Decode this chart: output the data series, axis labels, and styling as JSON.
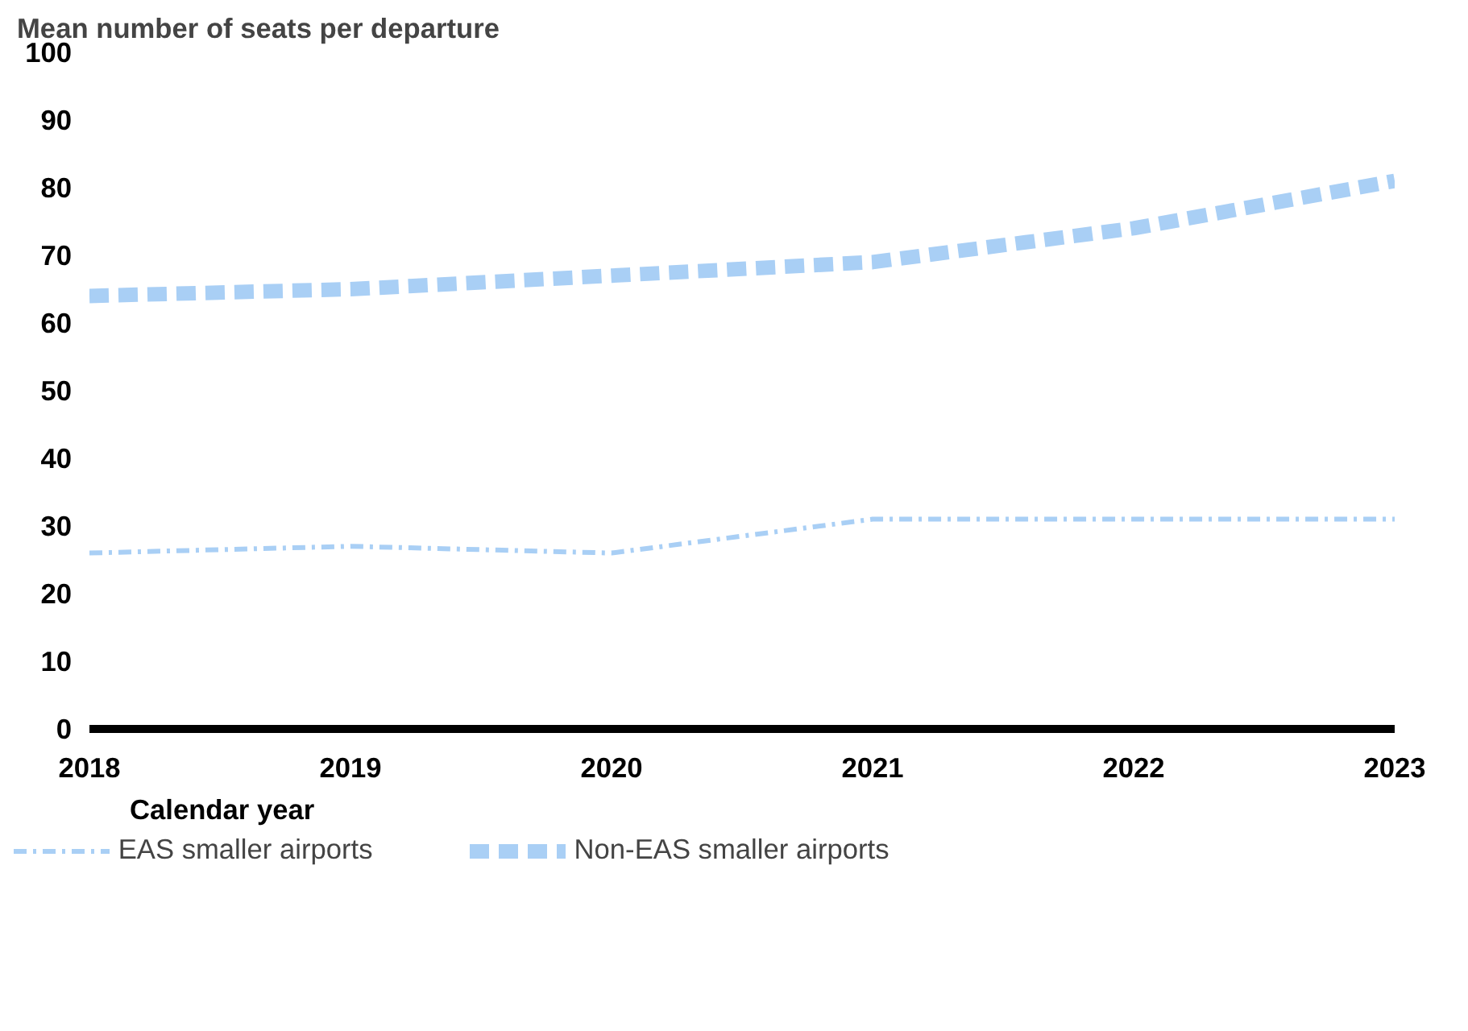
{
  "chart_data": {
    "type": "line",
    "ylabel": "Mean number of seats per departure",
    "xlabel": "Calendar year",
    "x": [
      2018,
      2019,
      2020,
      2021,
      2022,
      2023
    ],
    "series": [
      {
        "name": "EAS smaller airports",
        "color": "#a9cff5",
        "line_style": "dashdot",
        "values": [
          26,
          27,
          26,
          31,
          31,
          31
        ]
      },
      {
        "name": "Non-EAS smaller airports",
        "color": "#a9cff5",
        "line_style": "dashed",
        "values": [
          64,
          65,
          67,
          69,
          74,
          81
        ]
      }
    ],
    "xlim": [
      2018,
      2023
    ],
    "xticks": [
      2018,
      2019,
      2020,
      2021,
      2022,
      2023
    ],
    "ylim": [
      0,
      100
    ],
    "yticks": [
      0,
      10,
      20,
      30,
      40,
      50,
      60,
      70,
      80,
      90,
      100
    ],
    "grid": false,
    "legend": "bottom",
    "marker": "none"
  }
}
